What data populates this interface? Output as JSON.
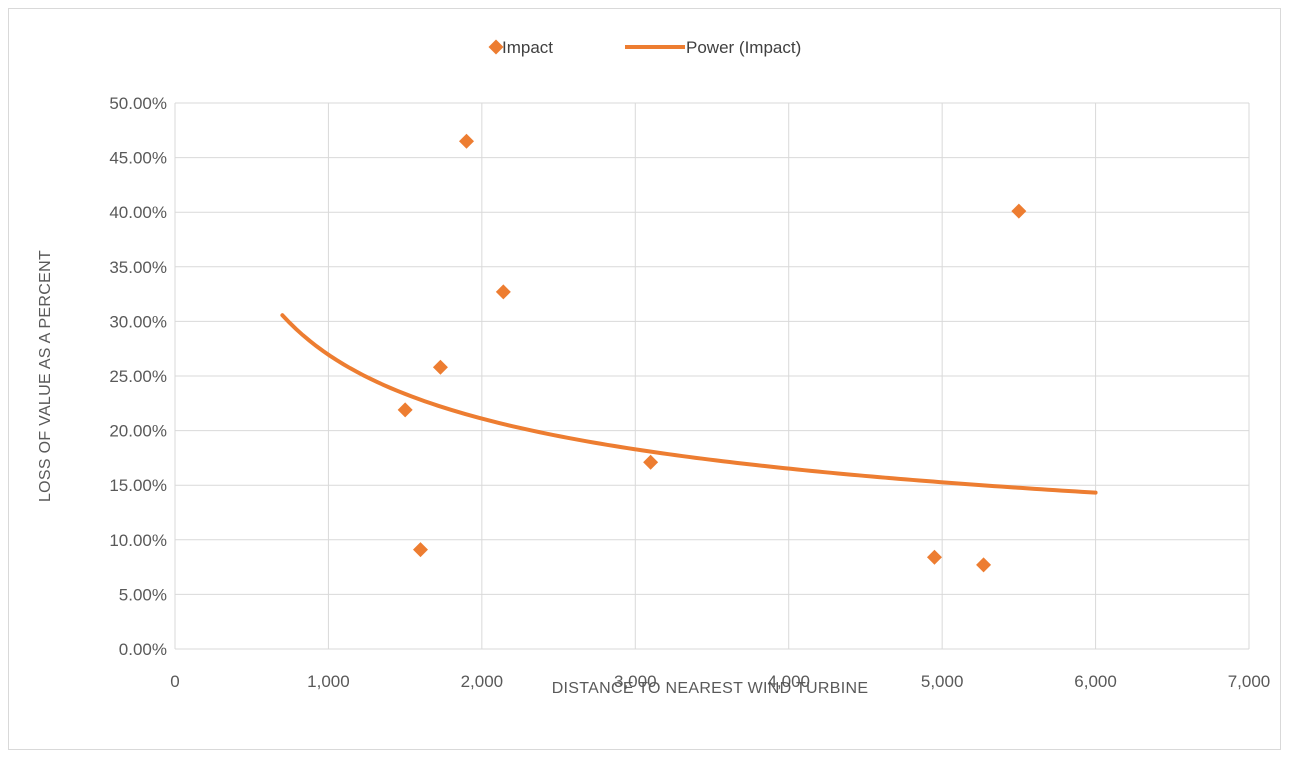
{
  "chart_data": {
    "type": "scatter",
    "title": "",
    "xlabel": "DISTANCE TO NEAREST WIND TURBINE",
    "ylabel": "LOSS OF VALUE AS A PERCENT",
    "xlim": [
      0,
      7000
    ],
    "ylim": [
      0,
      0.5
    ],
    "x_ticks": [
      "0",
      "1,000",
      "2,000",
      "3,000",
      "4,000",
      "5,000",
      "6,000",
      "7,000"
    ],
    "y_ticks": [
      "0.00%",
      "5.00%",
      "10.00%",
      "15.00%",
      "20.00%",
      "25.00%",
      "30.00%",
      "35.00%",
      "40.00%",
      "45.00%",
      "50.00%"
    ],
    "grid": true,
    "legend_position": "top",
    "series": [
      {
        "name": "Impact",
        "kind": "scatter",
        "marker": "diamond",
        "color": "#ED7D31",
        "points": [
          {
            "x": 1500,
            "y": 0.219
          },
          {
            "x": 1600,
            "y": 0.091
          },
          {
            "x": 1730,
            "y": 0.258
          },
          {
            "x": 1900,
            "y": 0.465
          },
          {
            "x": 2140,
            "y": 0.327
          },
          {
            "x": 3100,
            "y": 0.171
          },
          {
            "x": 4950,
            "y": 0.084
          },
          {
            "x": 5270,
            "y": 0.077
          },
          {
            "x": 5500,
            "y": 0.401
          }
        ]
      },
      {
        "name": "Power (Impact)",
        "kind": "trendline",
        "color": "#ED7D31",
        "x_range": [
          700,
          6000
        ],
        "fit": {
          "type": "power",
          "a": 3.087,
          "b": -0.353
        }
      }
    ]
  }
}
